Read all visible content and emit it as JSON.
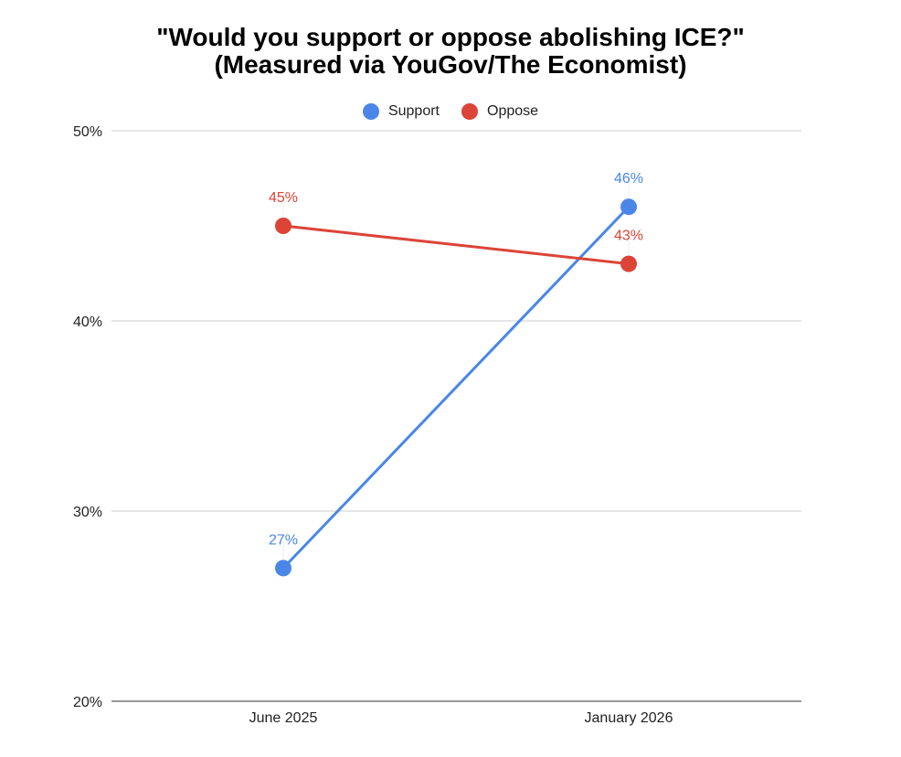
{
  "chart_data": {
    "type": "line",
    "title_line1": "\"Would you support or oppose abolishing ICE?\"",
    "title_line2": "(Measured via YouGov/The Economist)",
    "categories": [
      "June 2025",
      "January 2026"
    ],
    "series": [
      {
        "name": "Support",
        "values": [
          27,
          46
        ],
        "labels": [
          "27%",
          "46%"
        ],
        "color": "#4a86e8"
      },
      {
        "name": "Oppose",
        "values": [
          45,
          43
        ],
        "labels": [
          "45%",
          "43%"
        ],
        "color": "#db4437"
      }
    ],
    "ylim": [
      20,
      50
    ],
    "yticks": [
      20,
      30,
      40,
      50
    ],
    "ytick_labels": [
      "20%",
      "30%",
      "40%",
      "50%"
    ],
    "grid": true,
    "legend_position": "top-center"
  }
}
